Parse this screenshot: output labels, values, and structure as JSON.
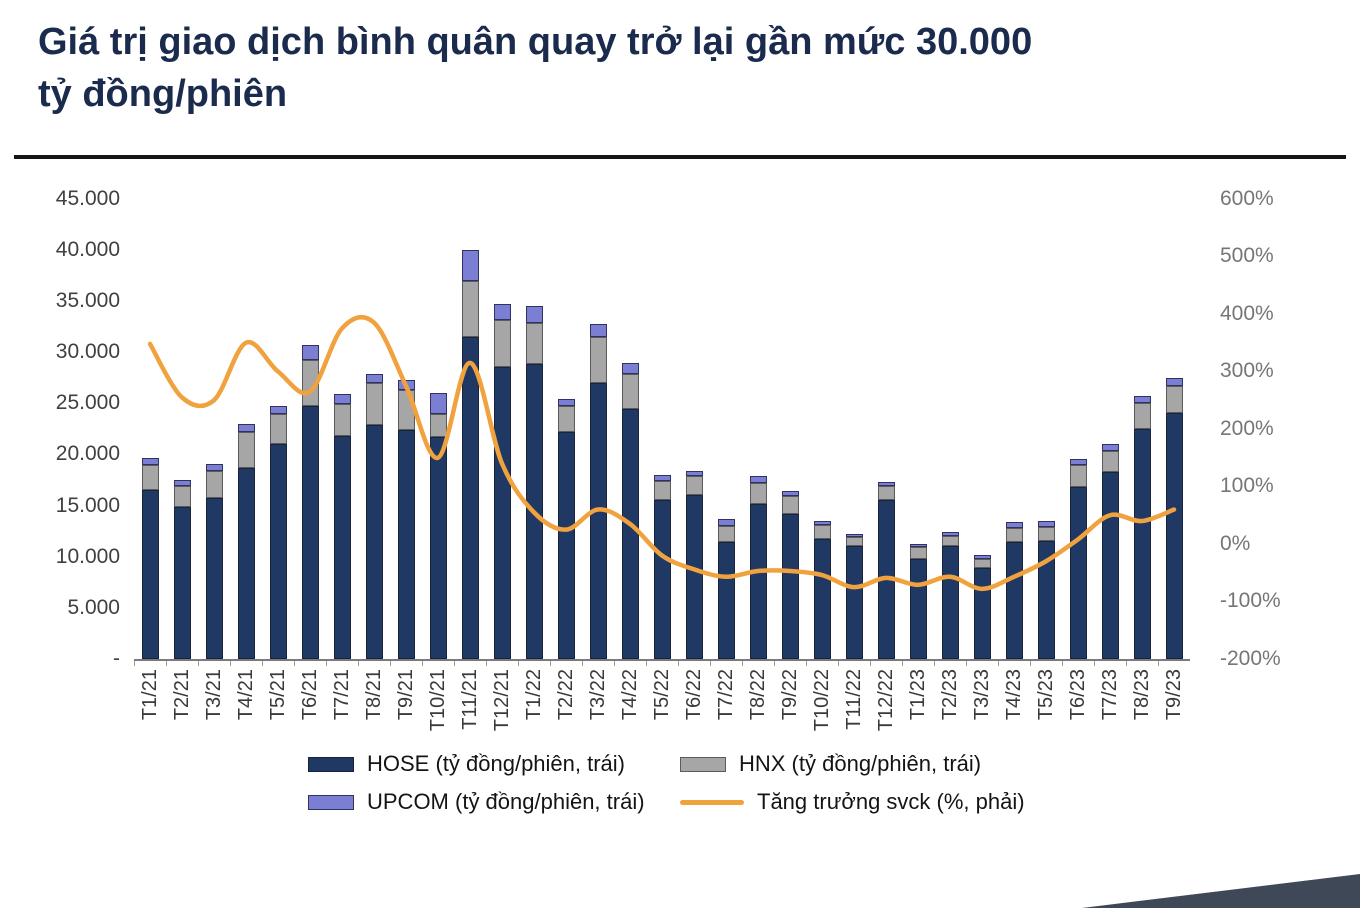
{
  "title": "Giá trị giao dịch bình quân quay trở lại gần mức 30.000\ntỷ đồng/phiên",
  "chart_data": {
    "type": "bar",
    "subtype": "stacked-bars-with-line-overlay",
    "grid": false,
    "legend_position": "bottom",
    "categories": [
      "T1/21",
      "T2/21",
      "T3/21",
      "T4/21",
      "T5/21",
      "T6/21",
      "T7/21",
      "T8/21",
      "T9/21",
      "T10/21",
      "T11/21",
      "T12/21",
      "T1/22",
      "T2/22",
      "T3/22",
      "T4/22",
      "T5/22",
      "T6/22",
      "T7/22",
      "T8/22",
      "T9/22",
      "T10/22",
      "T11/22",
      "T12/22",
      "T1/23",
      "T2/23",
      "T3/23",
      "T4/23",
      "T5/23",
      "T6/23",
      "T7/23",
      "T8/23",
      "T9/23"
    ],
    "left_axis": {
      "min": 0,
      "max": 45000,
      "ticks": [
        "45.000",
        "40.000",
        "35.000",
        "30.000",
        "25.000",
        "20.000",
        "15.000",
        "10.000",
        "5.000",
        "-"
      ]
    },
    "right_axis": {
      "min": -200,
      "max": 600,
      "ticks": [
        "600%",
        "500%",
        "400%",
        "300%",
        "200%",
        "100%",
        "0%",
        "-100%",
        "-200%"
      ]
    },
    "series": [
      {
        "name": "HOSE (tỷ đồng/phiên, trái)",
        "key": "hose",
        "type": "bar",
        "stack": true,
        "axis": "left",
        "color": "#1F3864",
        "values": [
          16500,
          14900,
          15700,
          18700,
          21000,
          24700,
          21800,
          22900,
          22400,
          21700,
          31500,
          28600,
          28800,
          22200,
          27000,
          24400,
          15500,
          16000,
          11450,
          15200,
          14200,
          11750,
          11000,
          15500,
          9800,
          11000,
          8900,
          11450,
          11550,
          16850,
          18250,
          22450,
          24100
        ]
      },
      {
        "name": "HNX (tỷ đồng/phiên, trái)",
        "key": "hnx",
        "type": "bar",
        "stack": true,
        "axis": "left",
        "color": "#A6A6A6",
        "values": [
          2500,
          2000,
          2700,
          3450,
          3000,
          4500,
          3100,
          4100,
          3900,
          2300,
          5500,
          4600,
          4100,
          2550,
          4450,
          3500,
          1950,
          1850,
          1600,
          2050,
          1700,
          1300,
          950,
          1450,
          1100,
          1050,
          900,
          1400,
          1400,
          2150,
          2050,
          2550,
          2550
        ]
      },
      {
        "name": "UPCOM (tỷ đồng/phiên, trái)",
        "key": "upcom",
        "type": "bar",
        "stack": true,
        "axis": "left",
        "color": "#7B7FD4",
        "values": [
          700,
          600,
          700,
          800,
          700,
          1500,
          1000,
          900,
          1000,
          2000,
          3000,
          1500,
          1600,
          700,
          1350,
          1000,
          500,
          500,
          600,
          600,
          500,
          400,
          300,
          400,
          350,
          400,
          400,
          500,
          500,
          600,
          700,
          700,
          800
        ]
      },
      {
        "name": "Tăng trưởng svck (%, phải)",
        "key": "growth",
        "type": "line",
        "axis": "right",
        "color": "#F0A23E",
        "values": [
          348,
          255,
          250,
          350,
          300,
          265,
          375,
          385,
          275,
          150,
          315,
          140,
          55,
          25,
          60,
          35,
          -20,
          -44,
          -57,
          -47,
          -47,
          -54,
          -75,
          -59,
          -71,
          -57,
          -78,
          -57,
          -30,
          8,
          50,
          40,
          60
        ]
      }
    ]
  }
}
